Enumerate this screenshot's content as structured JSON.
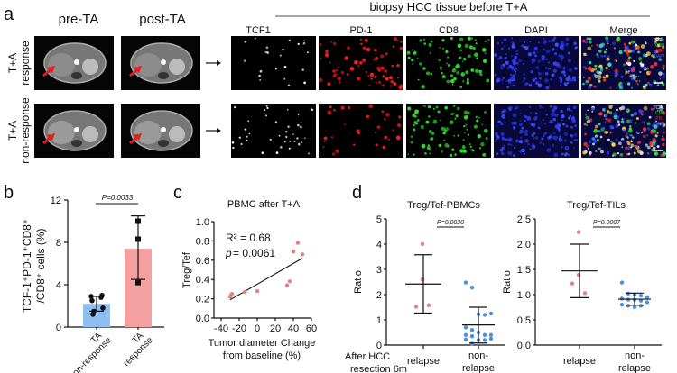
{
  "panel_a": {
    "letter": "a",
    "mri_headers": [
      "pre-TA",
      "post-TA"
    ],
    "row_labels": [
      [
        "T+A",
        "response"
      ],
      [
        "T+A",
        "non-response"
      ]
    ],
    "biopsy_title": "biopsy HCC tissue before T+A",
    "channels": [
      "TCF1",
      "PD-1",
      "CD8",
      "DAPI",
      "Merge"
    ],
    "merge_legend": [
      "TCF1",
      "CD8",
      "PD1",
      "DAPI"
    ],
    "colors": {
      "TCF1": "#ffffff",
      "PD-1": "#ff2020",
      "CD8": "#30e030",
      "DAPI": "#2030ff",
      "arrow": "#e02020"
    }
  },
  "chart_data": [
    {
      "id": "b",
      "letter": "b",
      "type": "bar",
      "categories": [
        [
          "TA",
          "non-response"
        ],
        [
          "TA",
          "response"
        ]
      ],
      "values": [
        2.2,
        7.4
      ],
      "error": [
        [
          1.5,
          2.9
        ],
        [
          4.5,
          10.5
        ]
      ],
      "points": [
        [
          2.9,
          2.8,
          3.0,
          2.5,
          1.8,
          1.5,
          1.2
        ],
        [
          10.0,
          8.3,
          4.2
        ]
      ],
      "colors": [
        "#8fbff0",
        "#f5a0a0"
      ],
      "ylabel": [
        "TCF-1⁺PD-1⁺CD8⁺",
        "/CD8⁺ cells (%)"
      ],
      "ylim": [
        0,
        12
      ],
      "yticks": [
        "0",
        "4",
        "8",
        "12"
      ],
      "pvalue": "P=0.0033"
    },
    {
      "id": "c",
      "letter": "c",
      "type": "scatter",
      "title": "PBMC after T+A",
      "x": [
        -30,
        -29,
        -28,
        -14,
        0,
        33,
        36,
        40,
        45,
        50
      ],
      "y": [
        0.22,
        0.24,
        0.25,
        0.27,
        0.28,
        0.34,
        0.38,
        0.69,
        0.78,
        0.66
      ],
      "fit": {
        "x": [
          -30,
          50
        ],
        "y": [
          0.19,
          0.62
        ]
      },
      "xlim": [
        -40,
        60
      ],
      "ylim": [
        0,
        1
      ],
      "xticks": [
        "-40",
        "-20",
        "0",
        "20",
        "40",
        "60"
      ],
      "yticks": [
        "0.0",
        "0.2",
        "0.4",
        "0.6",
        "0.8",
        "1.0"
      ],
      "xlabel": [
        "Tumor diameter Change",
        "from baseline (%)"
      ],
      "ylabel": "Treg/Tef",
      "r2": "R² = 0.68",
      "p_label": "p",
      "p_value": " = 0.0061",
      "point_color": "#e88080"
    },
    {
      "id": "d1",
      "letter": "d",
      "type": "scatter",
      "title": "Treg/Tef-PBMCs",
      "categories": [
        "relapse",
        [
          "non-",
          "relapse"
        ]
      ],
      "points": [
        [
          4.0,
          2.6,
          1.52,
          1.58
        ],
        [
          2.48,
          2.28,
          1.22,
          1.2,
          1.25,
          0.7,
          0.6,
          0.5,
          0.4,
          0.4,
          0.4,
          0.35,
          0.2,
          0.2,
          0.25,
          0.22,
          0.05
        ]
      ],
      "mean": [
        2.42,
        0.8
      ],
      "error": [
        [
          1.27,
          3.58
        ],
        [
          0.08,
          1.5
        ]
      ],
      "ylim": [
        0,
        5
      ],
      "yticks": [
        "0",
        "1",
        "2",
        "3",
        "4",
        "5"
      ],
      "ylabel": "Ratio",
      "pvalue": "P=0.0020",
      "colors": [
        "#e88080",
        "#4a90e0"
      ],
      "group_note": [
        "After HCC",
        "resection 6m"
      ]
    },
    {
      "id": "d2",
      "type": "scatter",
      "title": "Treg/Tef-TILs",
      "categories": [
        "relapse",
        [
          "non-",
          "relapse"
        ]
      ],
      "points": [
        [
          2.24,
          1.39,
          1.22,
          1.03
        ],
        [
          1.24,
          1.02,
          1.0,
          0.98,
          0.95,
          0.92,
          0.9,
          0.9,
          0.88,
          0.85,
          0.8,
          0.78,
          0.75,
          0.78
        ]
      ],
      "mean": [
        1.47,
        0.91
      ],
      "error": [
        [
          0.94,
          2.0
        ],
        [
          0.79,
          1.03
        ]
      ],
      "ylim": [
        0,
        2.5
      ],
      "yticks": [
        "0.0",
        "0.5",
        "1.0",
        "1.5",
        "2.0",
        "2.5"
      ],
      "ylabel": "Ratio",
      "pvalue": "P=0.0007",
      "colors": [
        "#e88080",
        "#4a90e0"
      ]
    }
  ]
}
